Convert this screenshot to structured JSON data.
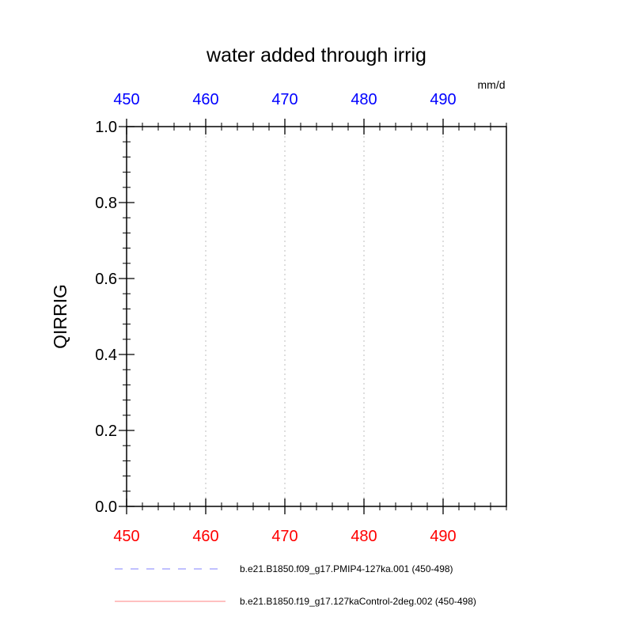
{
  "chart_data": {
    "type": "line",
    "title": "water added through irrig",
    "units": "mm/d",
    "ylabel": "QIRRIG",
    "xlim": [
      450,
      498
    ],
    "ylim": [
      0.0,
      1.0
    ],
    "x_major_ticks": [
      450,
      460,
      470,
      480,
      490
    ],
    "x_minor_step": 2,
    "y_major_ticks": [
      0.0,
      0.2,
      0.4,
      0.6,
      0.8,
      1.0
    ],
    "y_minor_step": 0.04,
    "grid": "vertical-dotted",
    "bottom_tick_color": "#ff0000",
    "top_tick_color": "#0000ff",
    "series": [
      {
        "name": "b.e21.B1850.f09_g17.PMIP4-127ka.001 (450-498)",
        "color": "#8080ff",
        "dash": "dashed",
        "values": []
      },
      {
        "name": "b.e21.B1850.f19_g17.127kaControl-2deg.002 (450-498)",
        "color": "#ff8080",
        "dash": "solid",
        "values": []
      }
    ]
  }
}
